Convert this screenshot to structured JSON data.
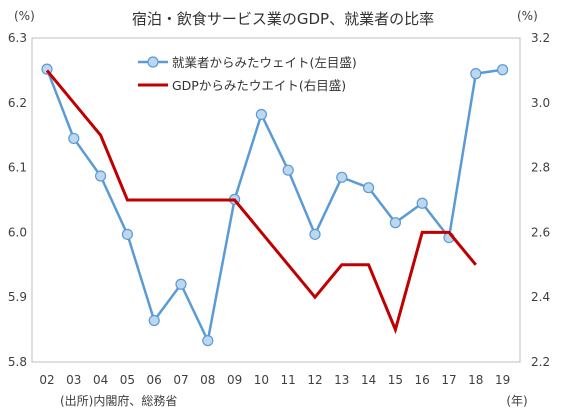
{
  "chart_data": {
    "type": "line",
    "title": "宿泊・飲食サービス業のGDP、就業者の比率",
    "left_axis_unit": "(%)",
    "right_axis_unit": "(%)",
    "x_unit": "(年)",
    "source": "(出所)内閣府、総務省",
    "categories": [
      "02",
      "03",
      "04",
      "05",
      "06",
      "07",
      "08",
      "09",
      "10",
      "11",
      "12",
      "13",
      "14",
      "15",
      "16",
      "17",
      "18",
      "19"
    ],
    "y_left": {
      "range": [
        5.8,
        6.3
      ],
      "ticks": [
        "5.8",
        "5.9",
        "6.0",
        "6.1",
        "6.2",
        "6.3"
      ]
    },
    "y_right": {
      "range": [
        2.2,
        3.2
      ],
      "ticks": [
        "2.2",
        "2.4",
        "2.6",
        "2.8",
        "3.0",
        "3.2"
      ]
    },
    "grid": false,
    "legend_position": "top-center",
    "series": [
      {
        "name": "就業者からみたウェイト(左目盛)",
        "axis": "left",
        "color": "#5b9bd5",
        "marker_fill": "#bdd7ee",
        "values": [
          6.252,
          6.145,
          6.087,
          5.997,
          5.864,
          5.92,
          5.833,
          6.051,
          6.182,
          6.096,
          5.997,
          6.085,
          6.069,
          6.015,
          6.045,
          5.992,
          6.245,
          6.251
        ]
      },
      {
        "name": "GDPからみたウエイト(右目盛)",
        "axis": "right",
        "color": "#c00000",
        "values": [
          3.1,
          3.0,
          2.9,
          2.7,
          2.7,
          2.7,
          2.7,
          2.7,
          2.6,
          2.5,
          2.4,
          2.5,
          2.5,
          2.3,
          2.6,
          2.6,
          2.5,
          null
        ]
      }
    ]
  }
}
